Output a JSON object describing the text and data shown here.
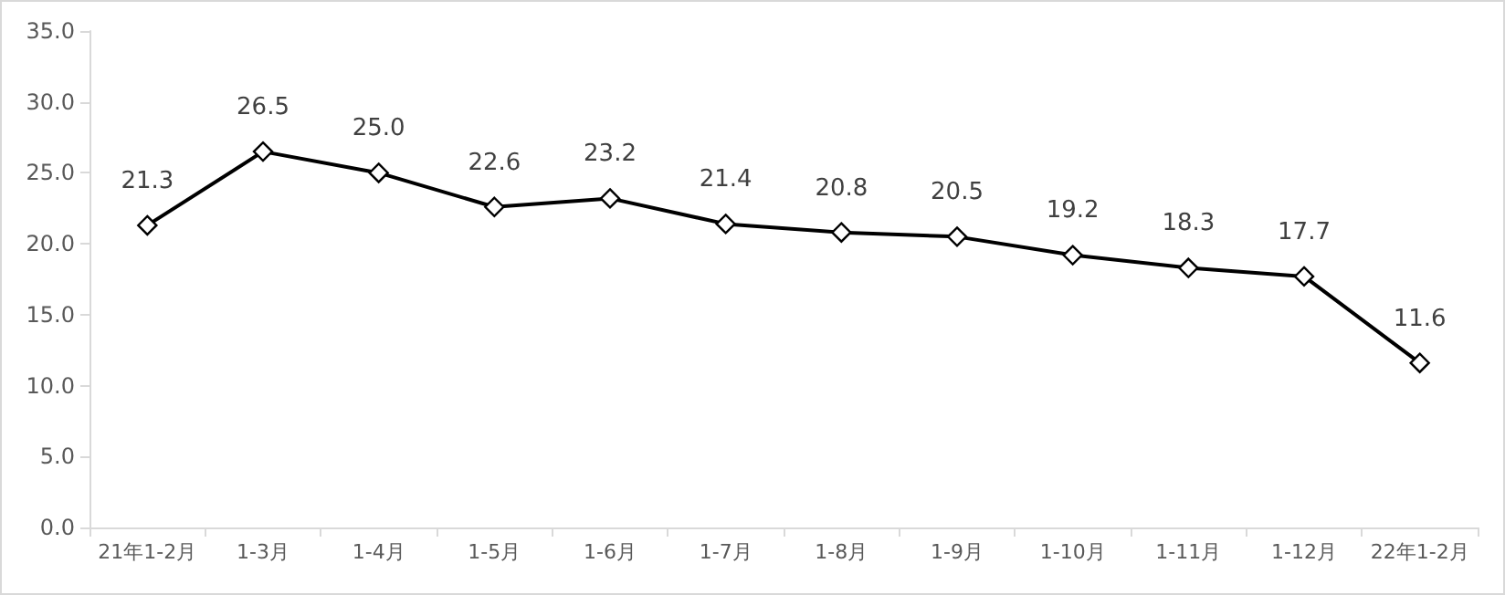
{
  "chart_data": {
    "type": "line",
    "categories": [
      "21年1-2月",
      "1-3月",
      "1-4月",
      "1-5月",
      "1-6月",
      "1-7月",
      "1-8月",
      "1-9月",
      "1-10月",
      "1-11月",
      "1-12月",
      "22年1-2月"
    ],
    "series": [
      {
        "color": "#000000",
        "values": [
          21.3,
          26.5,
          25.0,
          22.6,
          23.2,
          21.4,
          20.8,
          20.5,
          19.2,
          18.3,
          17.7,
          11.6
        ],
        "value_labels": [
          "21.3",
          "26.5",
          "25.0",
          "22.6",
          "23.2",
          "21.4",
          "20.8",
          "20.5",
          "19.2",
          "18.3",
          "17.7",
          "11.6"
        ]
      }
    ],
    "ylim": [
      0,
      35
    ],
    "yticks": [
      {
        "value": 0,
        "label": "0.0"
      },
      {
        "value": 5,
        "label": "5.0"
      },
      {
        "value": 10,
        "label": "10.0"
      },
      {
        "value": 15,
        "label": "15.0"
      },
      {
        "value": 20,
        "label": "20.0"
      },
      {
        "value": 25,
        "label": "25.0"
      },
      {
        "value": 30,
        "label": "30.0"
      },
      {
        "value": 35,
        "label": "35.0"
      }
    ],
    "grid": false,
    "marker": "diamond",
    "line_style": "solid"
  }
}
